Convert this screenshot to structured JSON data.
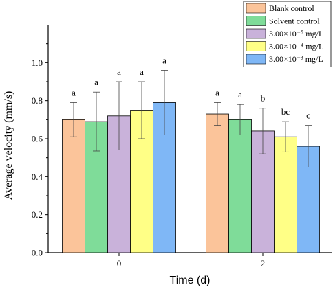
{
  "chart_data": {
    "type": "bar",
    "xlabel": "Time (d)",
    "ylabel": "Average velocity (mm/s)",
    "ylim": [
      0.0,
      1.2
    ],
    "yticks": [
      "0.0",
      "0.2",
      "0.4",
      "0.6",
      "0.8",
      "1.0"
    ],
    "categories": [
      "0",
      "2"
    ],
    "grid": false,
    "legend_position": "top-right",
    "series": [
      {
        "name": "Blank control",
        "color": "#fbc49a",
        "values": [
          0.7,
          0.73
        ],
        "errors": [
          0.09,
          0.06
        ],
        "letters": [
          "a",
          "a"
        ]
      },
      {
        "name": "Solvent control",
        "color": "#7fdc99",
        "values": [
          0.69,
          0.7
        ],
        "errors": [
          0.155,
          0.08
        ],
        "letters": [
          "a",
          "a"
        ]
      },
      {
        "name": "3.00×10⁻⁵ mg/L",
        "color": "#c9b2da",
        "values": [
          0.72,
          0.64
        ],
        "errors": [
          0.18,
          0.12
        ],
        "letters": [
          "a",
          "b"
        ]
      },
      {
        "name": "3.00×10⁻⁴ mg/L",
        "color": "#ffff86",
        "values": [
          0.75,
          0.61
        ],
        "errors": [
          0.15,
          0.08
        ],
        "letters": [
          "a",
          "bc"
        ]
      },
      {
        "name": "3.00×10⁻³ mg/L",
        "color": "#7fb7f6",
        "values": [
          0.79,
          0.56
        ],
        "errors": [
          0.17,
          0.11
        ],
        "letters": [
          "a",
          "c"
        ]
      }
    ]
  }
}
